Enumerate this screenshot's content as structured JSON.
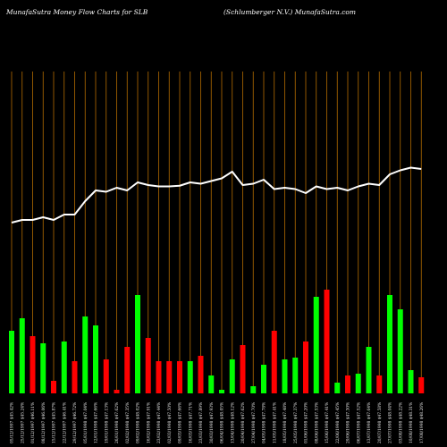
{
  "header": {
    "left": "MunafaSutra  Money Flow  Charts for SLB",
    "right": "(Schlumberger N.V.) MunafaSutra.com"
  },
  "colors": {
    "background": "#000000",
    "gridline": "#b36b00",
    "up_bar": "#00ff00",
    "down_bar": "#ff0000",
    "price_line": "#ffffff",
    "label": "#e6e6e6"
  },
  "chart_data": {
    "type": "bar",
    "series": [
      {
        "kind": "bar",
        "values": [
          {
            "v": 35,
            "dir": "up"
          },
          {
            "v": 42,
            "dir": "up"
          },
          {
            "v": 32,
            "dir": "down"
          },
          {
            "v": 28,
            "dir": "up"
          },
          {
            "v": 7,
            "dir": "down"
          },
          {
            "v": 29,
            "dir": "up"
          },
          {
            "v": 18,
            "dir": "down"
          },
          {
            "v": 43,
            "dir": "up"
          },
          {
            "v": 38,
            "dir": "up"
          },
          {
            "v": 19,
            "dir": "down"
          },
          {
            "v": 2,
            "dir": "down"
          },
          {
            "v": 26,
            "dir": "down"
          },
          {
            "v": 55,
            "dir": "up"
          },
          {
            "v": 31,
            "dir": "down"
          },
          {
            "v": 18,
            "dir": "down"
          },
          {
            "v": 18,
            "dir": "down"
          },
          {
            "v": 18,
            "dir": "down"
          },
          {
            "v": 18,
            "dir": "up"
          },
          {
            "v": 21,
            "dir": "down"
          },
          {
            "v": 10,
            "dir": "up"
          },
          {
            "v": 2,
            "dir": "up"
          },
          {
            "v": 19,
            "dir": "up"
          },
          {
            "v": 27,
            "dir": "down"
          },
          {
            "v": 4,
            "dir": "up"
          },
          {
            "v": 16,
            "dir": "up"
          },
          {
            "v": 35,
            "dir": "down"
          },
          {
            "v": 19,
            "dir": "up"
          },
          {
            "v": 20,
            "dir": "up"
          },
          {
            "v": 29,
            "dir": "down"
          },
          {
            "v": 54,
            "dir": "up"
          },
          {
            "v": 58,
            "dir": "down"
          },
          {
            "v": 6,
            "dir": "up"
          },
          {
            "v": 10,
            "dir": "down"
          },
          {
            "v": 11,
            "dir": "up"
          },
          {
            "v": 26,
            "dir": "up"
          },
          {
            "v": 10,
            "dir": "down"
          },
          {
            "v": 55,
            "dir": "up"
          },
          {
            "v": 47,
            "dir": "up"
          },
          {
            "v": 13,
            "dir": "up"
          },
          {
            "v": 9,
            "dir": "down"
          }
        ]
      },
      {
        "kind": "line",
        "values": [
          2,
          4,
          4,
          6,
          4,
          8,
          8,
          18,
          26,
          25,
          28,
          26,
          32,
          30,
          29,
          29,
          29.5,
          32,
          31,
          33,
          35,
          40,
          30,
          31,
          34,
          27,
          28,
          27,
          24,
          29,
          27,
          28,
          26,
          29,
          31,
          30,
          38,
          41,
          43,
          42
        ]
      }
    ],
    "ylim": [
      0,
      100
    ],
    "categories": [
      "05/12/1997 $45.42%",
      "25/12/1997 $45.24%",
      "01/12/1997 $46.11%",
      "08/12/1997 $46.06%",
      "15/12/1997 $45.87%",
      "22/12/1997 $46.41%",
      "29/12/1997 $46.72%",
      "05/01/1998 $47.04%",
      "12/01/1998 $47.66%",
      "19/01/1998 $47.13%",
      "26/01/1998 $47.62%",
      "02/02/1998 $47.35%",
      "09/02/1998 $48.02%",
      "16/02/1998 $47.91%",
      "23/02/1998 $47.44%",
      "02/03/1998 $47.50%",
      "09/03/1998 $47.66%",
      "16/03/1998 $47.71%",
      "23/03/1998 $47.89%",
      "30/03/1998 $47.93%",
      "06/04/1998 $48.05%",
      "13/04/1998 $48.12%",
      "20/04/1998 $47.62%",
      "27/04/1998 $47.70%",
      "04/05/1998 $47.78%",
      "11/05/1998 $47.41%",
      "18/05/1998 $47.48%",
      "25/05/1998 $47.37%",
      "01/06/1998 $47.20%",
      "08/06/1998 $47.53%",
      "15/06/1998 $47.41%",
      "22/06/1998 $47.45%",
      "29/06/1998 $47.30%",
      "06/07/1998 $47.52%",
      "13/07/1998 $47.64%",
      "20/07/1998 $47.58%",
      "27/07/1998 $48.04%",
      "03/08/1998 $48.22%",
      "10/08/1998 $48.31%",
      "17/08/1998 $48.26%"
    ],
    "title": "",
    "xlabel": "",
    "ylabel": ""
  }
}
